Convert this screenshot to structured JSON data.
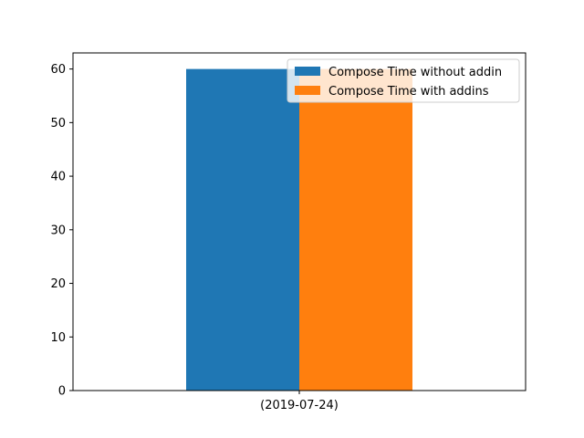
{
  "chart_data": {
    "type": "bar",
    "categories": [
      "(2019-07-24)"
    ],
    "series": [
      {
        "name": "Compose Time without addin",
        "values": [
          60
        ],
        "color": "#1f77b4"
      },
      {
        "name": "Compose Time with addins",
        "values": [
          60
        ],
        "color": "#ff7f0e"
      }
    ],
    "title": "",
    "xlabel": "",
    "ylabel": "",
    "ylim": [
      0,
      63
    ],
    "yticks": [
      0,
      10,
      20,
      30,
      40,
      50,
      60
    ],
    "grid": false,
    "legend_position": "top-right"
  }
}
